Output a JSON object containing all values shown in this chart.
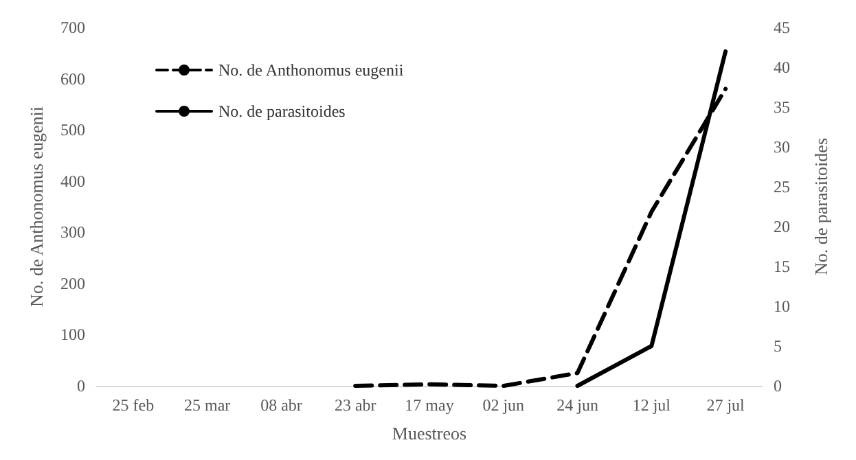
{
  "chart_data": {
    "type": "line",
    "xlabel": "Muestreos",
    "ylabel": "No. de Anthonomus eugenii",
    "y2label": "No. de parasitoides",
    "categories": [
      "25 feb",
      "25 mar",
      "08 abr",
      "23 abr",
      "17 may",
      "02 jun",
      "24 jun",
      "12 jul",
      "27 jul"
    ],
    "series": [
      {
        "name": "No. de Anthonomus eugenii",
        "color": "#000000",
        "line_style": "dashed",
        "values": [
          null,
          null,
          null,
          0,
          3,
          0,
          25,
          340,
          580
        ]
      },
      {
        "name": "No. de parasitoides",
        "color": "#000000",
        "line_style": "solid",
        "axis": "y2",
        "values": [
          null,
          null,
          null,
          null,
          null,
          null,
          0,
          5,
          42
        ]
      }
    ],
    "ylim": [
      0,
      700
    ],
    "yticks": [
      0,
      100,
      200,
      300,
      400,
      500,
      600,
      700
    ],
    "y2lim": [
      0,
      45
    ],
    "y2ticks": [
      0,
      5,
      10,
      15,
      20,
      25,
      30,
      35,
      40,
      45
    ],
    "grid": false,
    "legend": "top left",
    "marker": "none"
  }
}
